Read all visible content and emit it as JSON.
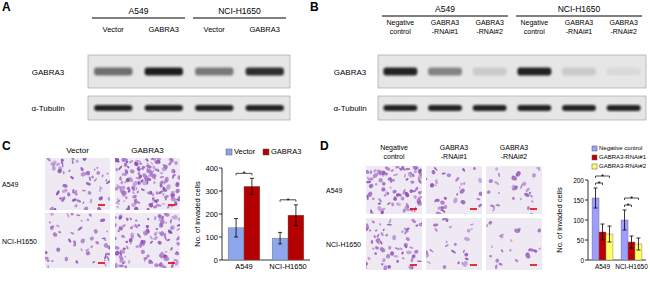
{
  "panels": {
    "A": {
      "label": "A",
      "cell_lines": [
        "A549",
        "NCI-H1650"
      ],
      "lanes": [
        "Vector",
        "GABRA3"
      ],
      "rows": [
        "GABRA3",
        "α-Tubulin"
      ]
    },
    "B": {
      "label": "B",
      "cell_lines": [
        "A549",
        "NCI-H1650"
      ],
      "lanes": [
        [
          "Negative",
          "control"
        ],
        [
          "GABRA3",
          "-RNAi#1"
        ],
        [
          "GABRA3",
          "-RNAi#2"
        ]
      ],
      "rows": [
        "GABRA3",
        "α-Tubulin"
      ]
    },
    "C": {
      "label": "C",
      "columns": [
        "Vector",
        "GABRA3"
      ],
      "rows": [
        "A549",
        "NCI-H1650"
      ]
    },
    "D": {
      "label": "D",
      "columns": [
        [
          "Negative",
          "control"
        ],
        [
          "GABRA3",
          "-RNAi#1"
        ],
        [
          "GABRA3",
          "-RNAi#2"
        ]
      ],
      "rows": [
        "A549",
        "NCI-H1650"
      ]
    }
  },
  "chart_data": [
    {
      "type": "bar",
      "y_label": "No. of invaded cells",
      "categories": [
        "A549",
        "NCI-H1650"
      ],
      "series": [
        {
          "name": "Vector",
          "color": "#8ea6ec",
          "values": [
            140,
            95
          ],
          "errors": [
            40,
            25
          ]
        },
        {
          "name": "GABRA3",
          "color": "#b40000",
          "values": [
            320,
            195
          ],
          "errors": [
            35,
            45
          ]
        }
      ],
      "ylim": [
        0,
        400
      ],
      "yticks": [
        0,
        100,
        200,
        300,
        400
      ],
      "legend": "top",
      "significance": [
        {
          "category": 0,
          "series": [
            0,
            1
          ],
          "label": "*"
        },
        {
          "category": 1,
          "series": [
            0,
            1
          ],
          "label": "*"
        }
      ]
    },
    {
      "type": "bar",
      "y_label": "No. of invaded cells",
      "categories": [
        "A549",
        "NCI-H1650"
      ],
      "series": [
        {
          "name": "Negative control",
          "color": "#9e9eff",
          "values": [
            155,
            100
          ],
          "errors": [
            25,
            25
          ]
        },
        {
          "name": "GABRA3-RNAi#1",
          "color": "#c00000",
          "values": [
            70,
            45
          ],
          "errors": [
            20,
            15
          ]
        },
        {
          "name": "GABRA3-RNAi#2",
          "color": "#ffff66",
          "values": [
            65,
            40
          ],
          "errors": [
            20,
            15
          ]
        }
      ],
      "ylim": [
        0,
        200
      ],
      "yticks": [
        0,
        50,
        100,
        150,
        200
      ],
      "legend": "top",
      "significance": [
        {
          "category": 0,
          "series": [
            0,
            1
          ],
          "label": "*"
        },
        {
          "category": 0,
          "series": [
            0,
            2
          ],
          "label": "*"
        },
        {
          "category": 1,
          "series": [
            0,
            1
          ],
          "label": "*"
        },
        {
          "category": 1,
          "series": [
            0,
            2
          ],
          "label": "*"
        }
      ]
    }
  ]
}
